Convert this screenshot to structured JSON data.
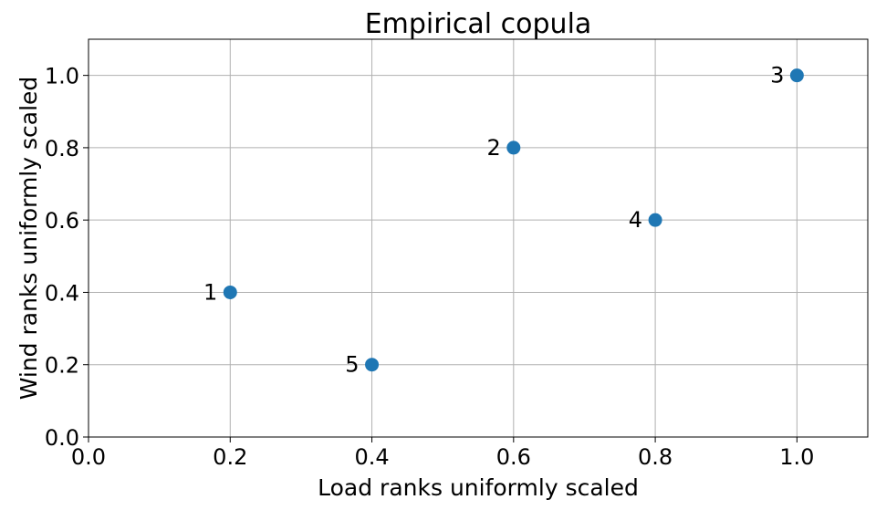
{
  "chart_data": {
    "type": "scatter",
    "title": "Empirical copula",
    "xlabel": "Load ranks uniformly scaled",
    "ylabel": "Wind ranks uniformly scaled",
    "xlim": [
      0.0,
      1.1
    ],
    "ylim": [
      0.0,
      1.1
    ],
    "x_ticks": [
      0.0,
      0.2,
      0.4,
      0.6,
      0.8,
      1.0
    ],
    "y_ticks": [
      0.0,
      0.2,
      0.4,
      0.6,
      0.8,
      1.0
    ],
    "x_tick_labels": [
      "0.0",
      "0.2",
      "0.4",
      "0.6",
      "0.8",
      "1.0"
    ],
    "y_tick_labels": [
      "0.0",
      "0.2",
      "0.4",
      "0.6",
      "0.8",
      "1.0"
    ],
    "grid": true,
    "points": [
      {
        "label": "1",
        "x": 0.2,
        "y": 0.4
      },
      {
        "label": "2",
        "x": 0.6,
        "y": 0.8
      },
      {
        "label": "3",
        "x": 1.0,
        "y": 1.0
      },
      {
        "label": "4",
        "x": 0.8,
        "y": 0.6
      },
      {
        "label": "5",
        "x": 0.4,
        "y": 0.2
      }
    ],
    "marker_color": "#1f77b4"
  }
}
